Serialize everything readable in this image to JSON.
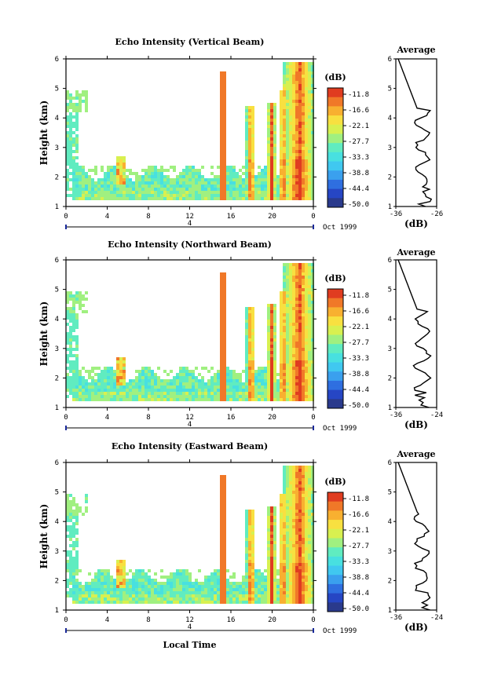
{
  "figure": {
    "xlabel": "Local Time",
    "month_label": "Oct 1999",
    "date_marker": "4"
  },
  "chart_data": [
    {
      "type": "heatmap",
      "title": "Echo Intensity (Vertical Beam)",
      "xlabel": "Local Time",
      "ylabel": "Height (km)",
      "xticks": [
        "0",
        "4",
        "8",
        "12",
        "16",
        "20",
        "0"
      ],
      "yticks": [
        "1",
        "2",
        "3",
        "4",
        "5",
        "6"
      ],
      "xlim": [
        0,
        24
      ],
      "ylim": [
        1,
        6
      ],
      "colorbar": {
        "unit": "(dB)",
        "ticks": [
          "-11.8",
          "-16.6",
          "-22.1",
          "-27.7",
          "-33.3",
          "-38.8",
          "-44.4",
          "-50.0"
        ],
        "range": [
          -50.0,
          -11.0
        ]
      },
      "avg_profile": {
        "title": "Average",
        "xlabel": "(dB)",
        "xticks": [
          "-36",
          "-26"
        ],
        "xlim": [
          -36,
          -26
        ],
        "yticks": [
          "1",
          "2",
          "3",
          "4",
          "5",
          "6"
        ]
      }
    },
    {
      "type": "heatmap",
      "title": "Echo Intensity (Northward Beam)",
      "xlabel": "Local Time",
      "ylabel": "Height (km)",
      "xticks": [
        "0",
        "4",
        "8",
        "12",
        "16",
        "20",
        "0"
      ],
      "yticks": [
        "1",
        "2",
        "3",
        "4",
        "5",
        "6"
      ],
      "xlim": [
        0,
        24
      ],
      "ylim": [
        1,
        6
      ],
      "colorbar": {
        "unit": "(dB)",
        "ticks": [
          "-11.8",
          "-16.6",
          "-22.1",
          "-27.7",
          "-33.3",
          "-38.8",
          "-44.4",
          "-50.0"
        ],
        "range": [
          -50.0,
          -11.0
        ]
      },
      "avg_profile": {
        "title": "Average",
        "xlabel": "(dB)",
        "xticks": [
          "-36",
          "-24"
        ],
        "xlim": [
          -36,
          -24
        ],
        "yticks": [
          "1",
          "2",
          "3",
          "4",
          "5",
          "6"
        ]
      }
    },
    {
      "type": "heatmap",
      "title": "Echo Intensity (Eastward Beam)",
      "xlabel": "Local Time",
      "ylabel": "Height (km)",
      "xticks": [
        "0",
        "4",
        "8",
        "12",
        "16",
        "20",
        "0"
      ],
      "yticks": [
        "1",
        "2",
        "3",
        "4",
        "5",
        "6"
      ],
      "xlim": [
        0,
        24
      ],
      "ylim": [
        1,
        6
      ],
      "colorbar": {
        "unit": "(dB)",
        "ticks": [
          "-11.8",
          "-16.6",
          "-22.1",
          "-27.7",
          "-33.3",
          "-38.8",
          "-44.4",
          "-50.0"
        ],
        "range": [
          -50.0,
          -11.0
        ]
      },
      "avg_profile": {
        "title": "Average",
        "xlabel": "(dB)",
        "xticks": [
          "-36",
          "-24"
        ],
        "xlim": [
          -36,
          -24
        ],
        "yticks": [
          "1",
          "2",
          "3",
          "4",
          "5",
          "6"
        ]
      }
    }
  ],
  "colors": {
    "scale": [
      "#2a3a8c",
      "#2646c4",
      "#2f6fe0",
      "#3aa0ee",
      "#40c8f0",
      "#48e0e0",
      "#60ecc0",
      "#a0f080",
      "#d8f050",
      "#f8e040",
      "#f8b030",
      "#f07828",
      "#e03c20"
    ]
  }
}
